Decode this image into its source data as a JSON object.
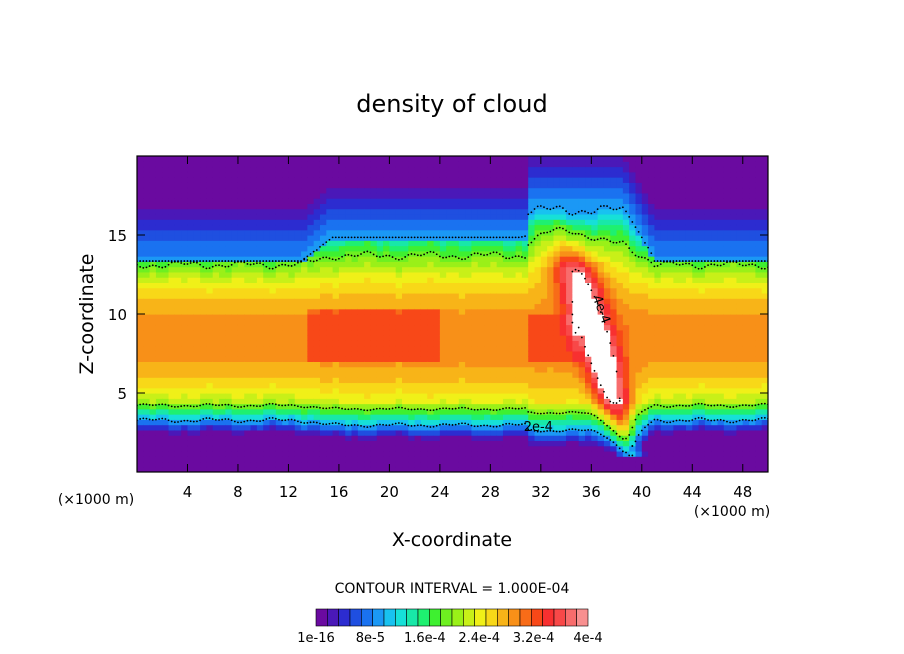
{
  "chart_data": {
    "type": "contour",
    "title": "density of cloud",
    "xlabel": "X-coordinate",
    "ylabel": "Z-coordinate",
    "x_unit_label": "(×1000 m)",
    "x_unit_label_right": "(×1000 m)",
    "xlim": [
      0,
      50
    ],
    "ylim": [
      0,
      20
    ],
    "x_ticks": [
      4,
      8,
      12,
      16,
      20,
      24,
      28,
      32,
      36,
      40,
      44,
      48
    ],
    "y_ticks": [
      5,
      10,
      15
    ],
    "contour_interval_text": "CONTOUR INTERVAL = 1.000E-04",
    "contour_labels": [
      {
        "text": "4e-4",
        "x": 36.5,
        "z": 10.2
      },
      {
        "text": "2e-4",
        "x": 31.8,
        "z": 2.6
      }
    ],
    "colorbar": {
      "tick_labels": [
        "1e-16",
        "8e-5",
        "1.6e-4",
        "2.4e-4",
        "3.2e-4",
        "4e-4"
      ],
      "colors": [
        "#6a0aa0",
        "#4a18b8",
        "#2c2cd0",
        "#1f4fe0",
        "#1a72f0",
        "#1b98f5",
        "#18c2f0",
        "#16e0d8",
        "#18e8a8",
        "#1ef070",
        "#3ef030",
        "#6ef020",
        "#9af018",
        "#c8f018",
        "#f0f018",
        "#f8d818",
        "#f8b418",
        "#f89018",
        "#f86c18",
        "#f84818",
        "#f83030",
        "#f84848",
        "#f86c6c",
        "#f89090"
      ]
    }
  }
}
